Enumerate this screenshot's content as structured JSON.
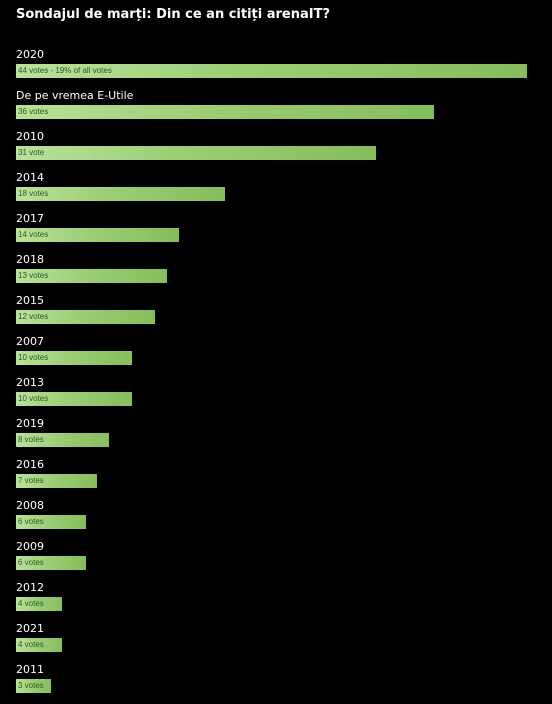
{
  "poll": {
    "title": "Sondajul de marți: Din ce an citiți arenaIT?"
  },
  "colors": {
    "background": "#000000",
    "bar_start": "#b9e29a",
    "bar_end": "#86bd5c",
    "bar_text": "#2f5a22"
  },
  "chart_data": {
    "type": "bar",
    "orientation": "horizontal",
    "categories": [
      "2020",
      "De pe vremea E-Utile",
      "2010",
      "2014",
      "2017",
      "2018",
      "2015",
      "2007",
      "2013",
      "2019",
      "2016",
      "2008",
      "2009",
      "2012",
      "2021",
      "2011"
    ],
    "values": [
      44,
      36,
      31,
      18,
      14,
      13,
      12,
      10,
      10,
      8,
      7,
      6,
      6,
      4,
      4,
      3
    ],
    "vote_labels": [
      "44 votes - 19% of all votes",
      "36 votes",
      "31 vote",
      "18 votes",
      "14 votes",
      "13 votes",
      "12 votes",
      "10 votes",
      "10 votes",
      "8 votes",
      "7 votes",
      "6 votes",
      "6 votes",
      "4 votes",
      "4 votes",
      "3 votes"
    ],
    "title": "Sondajul de marți: Din ce an citiți arenaIT?",
    "grid": false,
    "legend": "none"
  }
}
